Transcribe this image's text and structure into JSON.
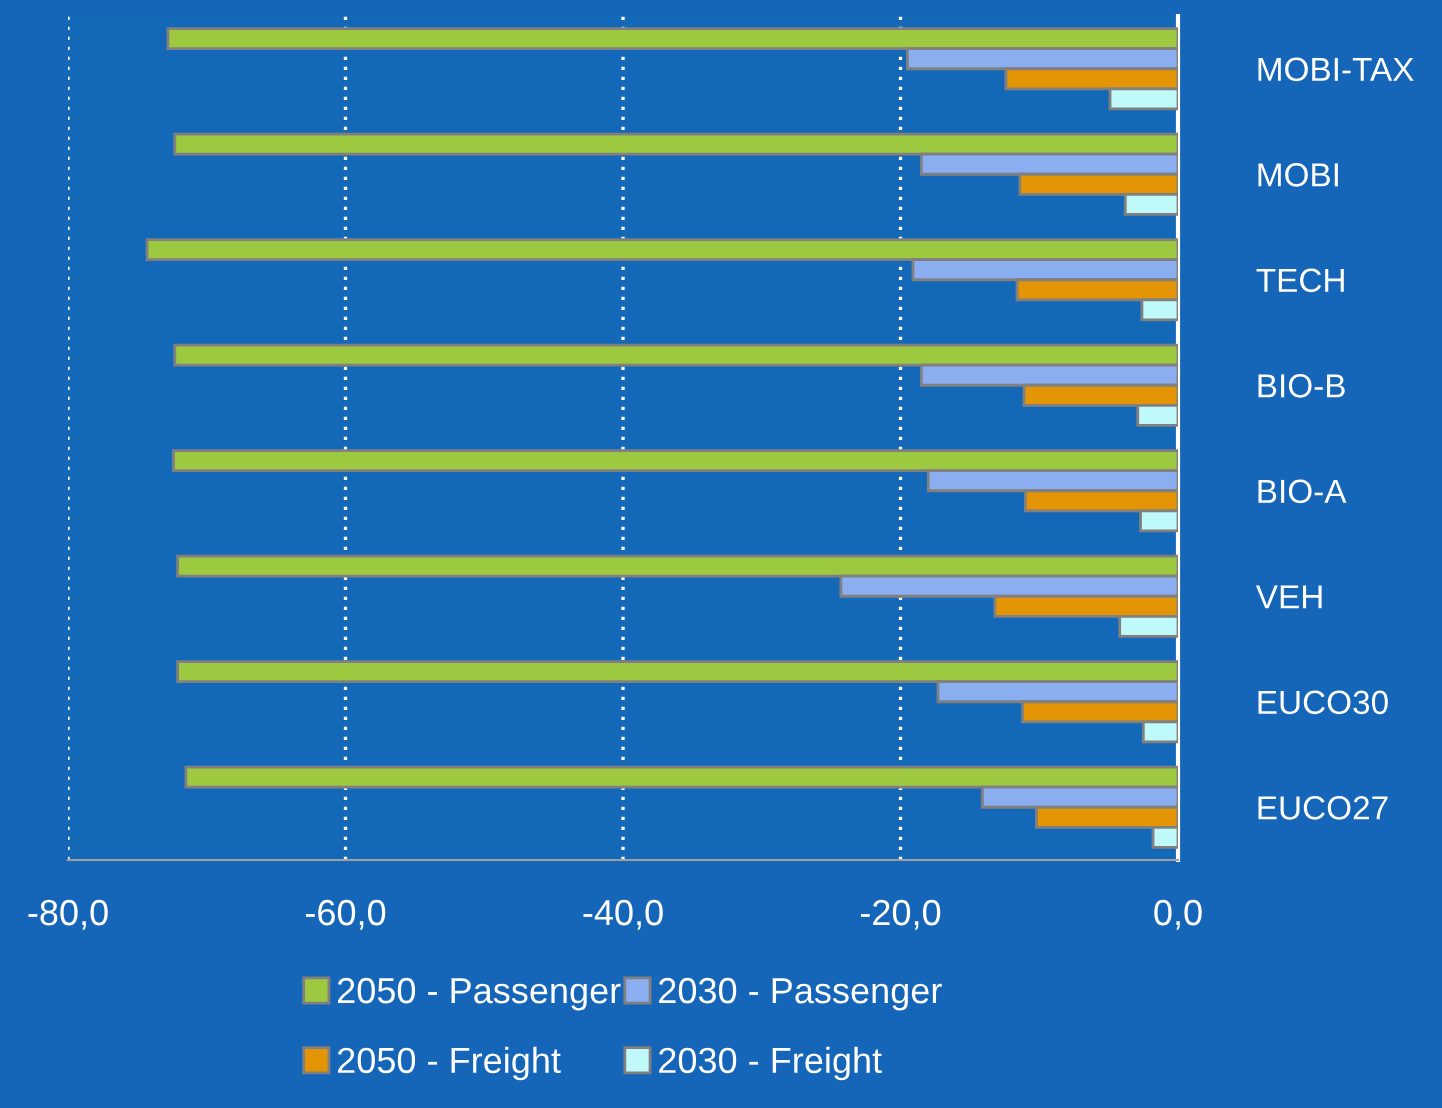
{
  "chart_data": {
    "type": "bar",
    "orientation": "horizontal",
    "categories": [
      "MOBI-TAX",
      "MOBI",
      "TECH",
      "BIO-B",
      "BIO-A",
      "VEH",
      "EUCO30",
      "EUCO27"
    ],
    "series": [
      {
        "name": "2050 - Passenger",
        "color": "#9dc940",
        "values": [
          -72.8,
          -72.3,
          -74.3,
          -72.3,
          -72.4,
          -72.1,
          -72.1,
          -71.5
        ]
      },
      {
        "name": "2030 - Passenger",
        "color": "#8aaef0",
        "values": [
          -19.5,
          -18.5,
          -19.1,
          -18.5,
          -18.0,
          -24.3,
          -17.3,
          -14.1
        ]
      },
      {
        "name": "2050 - Freight",
        "color": "#e39505",
        "values": [
          -12.4,
          -11.4,
          -11.6,
          -11.1,
          -11.0,
          -13.2,
          -11.2,
          -10.2
        ]
      },
      {
        "name": "2030 - Freight",
        "color": "#bff9f9",
        "values": [
          -4.9,
          -3.8,
          -2.6,
          -2.9,
          -2.7,
          -4.2,
          -2.5,
          -1.8
        ]
      }
    ],
    "xlim": [
      -80,
      0
    ],
    "xticks": [
      {
        "value": -80,
        "label": "-80,0"
      },
      {
        "value": -60,
        "label": "-60,0"
      },
      {
        "value": -40,
        "label": "-40,0"
      },
      {
        "value": -20,
        "label": "-20,0"
      },
      {
        "value": 0,
        "label": "0,0"
      }
    ],
    "grid": "x",
    "legend": "bottom"
  }
}
